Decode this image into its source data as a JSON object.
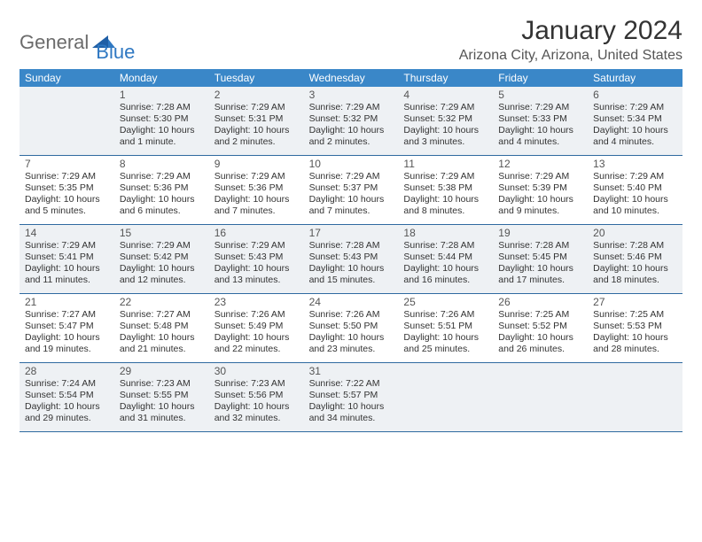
{
  "logo": {
    "text1": "General",
    "text2": "Blue",
    "accent_color": "#2f78c2",
    "muted_color": "#6b6b6b"
  },
  "title": "January 2024",
  "location": "Arizona City, Arizona, United States",
  "colors": {
    "header_bg": "#3a87c8",
    "header_text": "#ffffff",
    "row_divider": "#2f6aa0",
    "shaded_bg": "#eef1f4",
    "page_bg": "#ffffff",
    "text": "#333333"
  },
  "weekdays": [
    "Sunday",
    "Monday",
    "Tuesday",
    "Wednesday",
    "Thursday",
    "Friday",
    "Saturday"
  ],
  "first_weekday_index": 1,
  "days": [
    {
      "n": 1,
      "sunrise": "7:28 AM",
      "sunset": "5:30 PM",
      "daylight": "10 hours and 1 minute."
    },
    {
      "n": 2,
      "sunrise": "7:29 AM",
      "sunset": "5:31 PM",
      "daylight": "10 hours and 2 minutes."
    },
    {
      "n": 3,
      "sunrise": "7:29 AM",
      "sunset": "5:32 PM",
      "daylight": "10 hours and 2 minutes."
    },
    {
      "n": 4,
      "sunrise": "7:29 AM",
      "sunset": "5:32 PM",
      "daylight": "10 hours and 3 minutes."
    },
    {
      "n": 5,
      "sunrise": "7:29 AM",
      "sunset": "5:33 PM",
      "daylight": "10 hours and 4 minutes."
    },
    {
      "n": 6,
      "sunrise": "7:29 AM",
      "sunset": "5:34 PM",
      "daylight": "10 hours and 4 minutes."
    },
    {
      "n": 7,
      "sunrise": "7:29 AM",
      "sunset": "5:35 PM",
      "daylight": "10 hours and 5 minutes."
    },
    {
      "n": 8,
      "sunrise": "7:29 AM",
      "sunset": "5:36 PM",
      "daylight": "10 hours and 6 minutes."
    },
    {
      "n": 9,
      "sunrise": "7:29 AM",
      "sunset": "5:36 PM",
      "daylight": "10 hours and 7 minutes."
    },
    {
      "n": 10,
      "sunrise": "7:29 AM",
      "sunset": "5:37 PM",
      "daylight": "10 hours and 7 minutes."
    },
    {
      "n": 11,
      "sunrise": "7:29 AM",
      "sunset": "5:38 PM",
      "daylight": "10 hours and 8 minutes."
    },
    {
      "n": 12,
      "sunrise": "7:29 AM",
      "sunset": "5:39 PM",
      "daylight": "10 hours and 9 minutes."
    },
    {
      "n": 13,
      "sunrise": "7:29 AM",
      "sunset": "5:40 PM",
      "daylight": "10 hours and 10 minutes."
    },
    {
      "n": 14,
      "sunrise": "7:29 AM",
      "sunset": "5:41 PM",
      "daylight": "10 hours and 11 minutes."
    },
    {
      "n": 15,
      "sunrise": "7:29 AM",
      "sunset": "5:42 PM",
      "daylight": "10 hours and 12 minutes."
    },
    {
      "n": 16,
      "sunrise": "7:29 AM",
      "sunset": "5:43 PM",
      "daylight": "10 hours and 13 minutes."
    },
    {
      "n": 17,
      "sunrise": "7:28 AM",
      "sunset": "5:43 PM",
      "daylight": "10 hours and 15 minutes."
    },
    {
      "n": 18,
      "sunrise": "7:28 AM",
      "sunset": "5:44 PM",
      "daylight": "10 hours and 16 minutes."
    },
    {
      "n": 19,
      "sunrise": "7:28 AM",
      "sunset": "5:45 PM",
      "daylight": "10 hours and 17 minutes."
    },
    {
      "n": 20,
      "sunrise": "7:28 AM",
      "sunset": "5:46 PM",
      "daylight": "10 hours and 18 minutes."
    },
    {
      "n": 21,
      "sunrise": "7:27 AM",
      "sunset": "5:47 PM",
      "daylight": "10 hours and 19 minutes."
    },
    {
      "n": 22,
      "sunrise": "7:27 AM",
      "sunset": "5:48 PM",
      "daylight": "10 hours and 21 minutes."
    },
    {
      "n": 23,
      "sunrise": "7:26 AM",
      "sunset": "5:49 PM",
      "daylight": "10 hours and 22 minutes."
    },
    {
      "n": 24,
      "sunrise": "7:26 AM",
      "sunset": "5:50 PM",
      "daylight": "10 hours and 23 minutes."
    },
    {
      "n": 25,
      "sunrise": "7:26 AM",
      "sunset": "5:51 PM",
      "daylight": "10 hours and 25 minutes."
    },
    {
      "n": 26,
      "sunrise": "7:25 AM",
      "sunset": "5:52 PM",
      "daylight": "10 hours and 26 minutes."
    },
    {
      "n": 27,
      "sunrise": "7:25 AM",
      "sunset": "5:53 PM",
      "daylight": "10 hours and 28 minutes."
    },
    {
      "n": 28,
      "sunrise": "7:24 AM",
      "sunset": "5:54 PM",
      "daylight": "10 hours and 29 minutes."
    },
    {
      "n": 29,
      "sunrise": "7:23 AM",
      "sunset": "5:55 PM",
      "daylight": "10 hours and 31 minutes."
    },
    {
      "n": 30,
      "sunrise": "7:23 AM",
      "sunset": "5:56 PM",
      "daylight": "10 hours and 32 minutes."
    },
    {
      "n": 31,
      "sunrise": "7:22 AM",
      "sunset": "5:57 PM",
      "daylight": "10 hours and 34 minutes."
    }
  ],
  "shaded_rows_by_number": [
    [
      1,
      6
    ],
    [
      14,
      20
    ],
    [
      28,
      31
    ]
  ]
}
